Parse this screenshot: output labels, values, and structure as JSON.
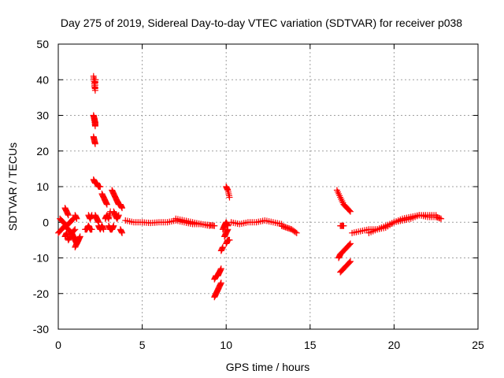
{
  "chart_data": {
    "type": "scatter",
    "title": "Day 275 of 2019, Sidereal Day-to-day VTEC variation (SDTVAR) for receiver p038",
    "xlabel": "GPS time / hours",
    "ylabel": "SDTVAR / TECUs",
    "xlim": [
      0,
      25
    ],
    "ylim": [
      -30,
      50
    ],
    "xticks": [
      0,
      5,
      10,
      15,
      20,
      25
    ],
    "yticks": [
      -30,
      -20,
      -10,
      0,
      10,
      20,
      30,
      40,
      50
    ],
    "grid": true,
    "marker": "+",
    "color": "#ff0000",
    "series": [
      {
        "name": "SDTVAR",
        "segments": [
          {
            "x": [
              0.0,
              0.2,
              0.4,
              0.6,
              0.8,
              1.0
            ],
            "y": [
              -3,
              -2,
              -1,
              -2,
              -3,
              -2
            ]
          },
          {
            "x": [
              0.1,
              0.3,
              0.5,
              0.7,
              0.9
            ],
            "y": [
              1,
              0,
              -1,
              0,
              1
            ]
          },
          {
            "x": [
              0.4,
              0.5,
              0.6,
              0.7
            ],
            "y": [
              -4,
              -3,
              -5,
              -4
            ]
          },
          {
            "x": [
              0.4,
              0.5,
              0.6
            ],
            "y": [
              4,
              3,
              2
            ]
          },
          {
            "x": [
              0.8,
              0.9,
              1.0,
              1.1,
              1.2,
              1.3
            ],
            "y": [
              -3,
              -4,
              -5,
              -6,
              -5,
              -4
            ]
          },
          {
            "x": [
              1.0,
              1.1,
              1.2
            ],
            "y": [
              -7,
              -6,
              -5
            ]
          },
          {
            "x": [
              1.0,
              1.1
            ],
            "y": [
              2,
              1
            ]
          },
          {
            "x": [
              1.6,
              1.7,
              1.8,
              1.9,
              2.0
            ],
            "y": [
              -2,
              -2,
              -1,
              -2,
              -2
            ]
          },
          {
            "x": [
              1.8,
              1.9,
              2.0
            ],
            "y": [
              2,
              1,
              2
            ]
          },
          {
            "x": [
              2.1,
              2.15,
              2.2,
              2.2,
              2.15
            ],
            "y": [
              41,
              39,
              37,
              40,
              38
            ]
          },
          {
            "x": [
              2.1,
              2.15,
              2.2,
              2.2,
              2.15
            ],
            "y": [
              30,
              29,
              28,
              27,
              29
            ]
          },
          {
            "x": [
              2.1,
              2.15,
              2.2
            ],
            "y": [
              24,
              23,
              22
            ]
          },
          {
            "x": [
              2.1,
              2.2,
              2.3,
              2.4,
              2.5
            ],
            "y": [
              12,
              11,
              11,
              10,
              10
            ]
          },
          {
            "x": [
              2.2,
              2.3,
              2.4
            ],
            "y": [
              2,
              1,
              0
            ]
          },
          {
            "x": [
              2.4,
              2.5,
              2.6,
              2.7
            ],
            "y": [
              -1,
              -2,
              -1,
              -2
            ]
          },
          {
            "x": [
              2.6,
              2.7,
              2.8,
              2.9
            ],
            "y": [
              8,
              7,
              6,
              5
            ]
          },
          {
            "x": [
              2.8,
              2.9,
              3.0,
              3.1
            ],
            "y": [
              1,
              2,
              1,
              3
            ]
          },
          {
            "x": [
              3.0,
              3.1,
              3.2,
              3.3
            ],
            "y": [
              -1,
              -2,
              -2,
              -1
            ]
          },
          {
            "x": [
              3.2,
              3.3,
              3.4,
              3.5,
              3.6,
              3.7,
              3.8
            ],
            "y": [
              9,
              8,
              7,
              6,
              5,
              5,
              4
            ]
          },
          {
            "x": [
              3.3,
              3.4,
              3.5,
              3.6
            ],
            "y": [
              3,
              2,
              1,
              2
            ]
          },
          {
            "x": [
              3.7,
              3.8
            ],
            "y": [
              -2,
              -3
            ]
          },
          {
            "x": [
              4.0,
              4.5,
              5.0,
              5.5,
              6.0,
              6.5,
              7.0,
              7.5,
              8.0,
              8.5,
              9.0,
              9.3
            ],
            "y": [
              0.5,
              0,
              0,
              -0.2,
              0,
              0,
              0.5,
              0,
              -0.5,
              -0.5,
              -0.8,
              -1
            ]
          },
          {
            "x": [
              7.0,
              7.5,
              8.0,
              8.5,
              9.0
            ],
            "y": [
              1,
              0.5,
              0,
              -0.5,
              -1
            ]
          },
          {
            "x": [
              9.3,
              9.4,
              9.5,
              9.6,
              9.7
            ],
            "y": [
              -21,
              -20,
              -19,
              -18,
              -17
            ]
          },
          {
            "x": [
              9.3,
              9.4,
              9.5,
              9.6,
              9.7
            ],
            "y": [
              -16,
              -15,
              -15,
              -14,
              -13
            ]
          },
          {
            "x": [
              9.7,
              9.8
            ],
            "y": [
              -8,
              -7
            ]
          },
          {
            "x": [
              9.8,
              9.9,
              10.0,
              10.1
            ],
            "y": [
              -2,
              -1,
              0,
              -1
            ]
          },
          {
            "x": [
              9.9,
              10.0,
              10.1
            ],
            "y": [
              -4,
              -3,
              -2
            ]
          },
          {
            "x": [
              10.0,
              10.1,
              10.2
            ],
            "y": [
              -6,
              -5,
              -5
            ]
          },
          {
            "x": [
              10.0,
              10.1,
              10.2
            ],
            "y": [
              10,
              9,
              7
            ]
          },
          {
            "x": [
              10.3,
              10.8,
              11.3,
              11.8,
              12.3,
              12.8,
              13.3
            ],
            "y": [
              0,
              -0.5,
              0,
              0,
              0.5,
              0,
              -0.5
            ]
          },
          {
            "x": [
              13.3,
              13.6,
              13.9,
              14.2
            ],
            "y": [
              -1,
              -1.5,
              -2,
              -3
            ]
          },
          {
            "x": [
              16.6,
              16.8,
              17.0,
              17.2,
              17.4
            ],
            "y": [
              9,
              7,
              5,
              4,
              3
            ]
          },
          {
            "x": [
              16.7,
              16.8,
              17.0,
              17.2,
              17.4
            ],
            "y": [
              -10,
              -9,
              -8,
              -7,
              -6
            ]
          },
          {
            "x": [
              16.8,
              17.0,
              17.2,
              17.4
            ],
            "y": [
              -14,
              -13,
              -12,
              -11
            ]
          },
          {
            "x": [
              16.8,
              17.0
            ],
            "y": [
              -1,
              -1
            ]
          },
          {
            "x": [
              17.5,
              18.0,
              18.5,
              19.0,
              19.5,
              20.0,
              20.5,
              21.0,
              21.5,
              22.0,
              22.5,
              22.8
            ],
            "y": [
              -3,
              -2.5,
              -2,
              -2,
              -1.5,
              0,
              1,
              1.5,
              2,
              1.5,
              1.5,
              1
            ]
          },
          {
            "x": [
              18.5,
              19.0,
              19.5,
              20.0,
              20.5,
              21.0,
              21.5,
              22.0,
              22.5
            ],
            "y": [
              -3,
              -2,
              -1,
              0,
              0.5,
              1,
              2,
              2,
              2
            ]
          }
        ]
      }
    ]
  }
}
